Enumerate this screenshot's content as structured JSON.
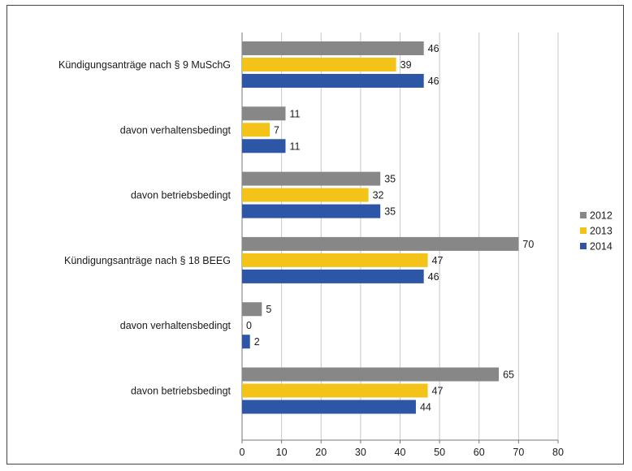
{
  "chart_data": {
    "type": "bar",
    "orientation": "horizontal",
    "categories": [
      "Kündigungsanträge nach § 9 MuSchG",
      "davon verhaltensbedingt",
      "davon betriebsbedingt",
      "Kündigungsanträge nach § 18 BEEG",
      "davon verhaltensbedingt",
      "davon betriebsbedingt"
    ],
    "series": [
      {
        "name": "2012",
        "color": "#878787",
        "values": [
          46,
          11,
          35,
          70,
          5,
          65
        ]
      },
      {
        "name": "2013",
        "color": "#f3c31a",
        "values": [
          39,
          7,
          32,
          47,
          0,
          47
        ]
      },
      {
        "name": "2014",
        "color": "#2e56a6",
        "values": [
          46,
          11,
          35,
          46,
          2,
          44
        ]
      }
    ],
    "xlim": [
      0,
      80
    ],
    "xticks": [
      0,
      10,
      20,
      30,
      40,
      50,
      60,
      70,
      80
    ],
    "grid": true,
    "legend_position": "right",
    "title": "",
    "xlabel": "",
    "ylabel": ""
  }
}
